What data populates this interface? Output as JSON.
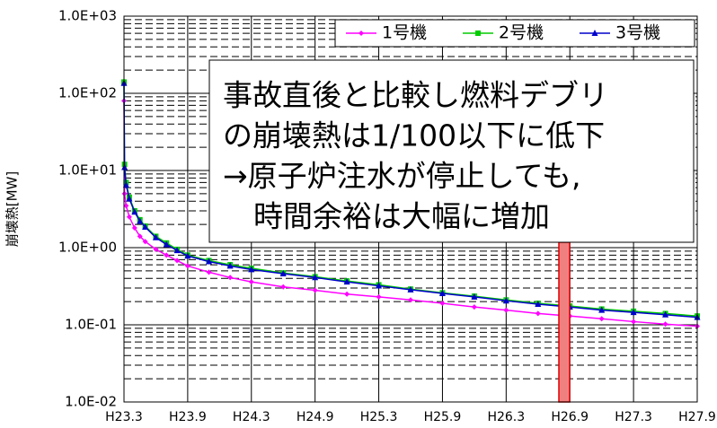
{
  "chart_data": {
    "type": "line",
    "y_label": "崩壊熱[MW]",
    "log_y": true,
    "grid": true,
    "legend_position": "top-right",
    "x": [
      0,
      0.05,
      0.2,
      0.5,
      1,
      1.5,
      2,
      3,
      4,
      5,
      6,
      8,
      10,
      12,
      15,
      18,
      21,
      24,
      27,
      30,
      33,
      36,
      39,
      42,
      45,
      48,
      51,
      54
    ],
    "series": [
      {
        "name": "1号機",
        "color": "#ff00ff",
        "marker": "diamond",
        "values": [
          80,
          5,
          3.5,
          2.5,
          1.8,
          1.4,
          1.2,
          0.95,
          0.8,
          0.68,
          0.58,
          0.48,
          0.41,
          0.36,
          0.31,
          0.28,
          0.25,
          0.23,
          0.21,
          0.19,
          0.17,
          0.155,
          0.14,
          0.13,
          0.12,
          0.11,
          0.102,
          0.096
        ]
      },
      {
        "name": "2号機",
        "color": "#00cc00",
        "marker": "square",
        "values": [
          140,
          12,
          7,
          4.5,
          3.0,
          2.3,
          1.9,
          1.4,
          1.15,
          0.95,
          0.8,
          0.68,
          0.6,
          0.54,
          0.47,
          0.42,
          0.37,
          0.33,
          0.29,
          0.26,
          0.235,
          0.21,
          0.19,
          0.175,
          0.16,
          0.15,
          0.14,
          0.13
        ]
      },
      {
        "name": "3号機",
        "color": "#0000cc",
        "marker": "triangle",
        "values": [
          135,
          11,
          6.5,
          4.3,
          2.9,
          2.2,
          1.85,
          1.35,
          1.1,
          0.92,
          0.78,
          0.66,
          0.58,
          0.52,
          0.46,
          0.41,
          0.36,
          0.32,
          0.285,
          0.255,
          0.23,
          0.205,
          0.185,
          0.17,
          0.155,
          0.145,
          0.135,
          0.125
        ]
      }
    ],
    "xlim": [
      0,
      54
    ],
    "xticks": [
      {
        "value": 0,
        "label": "H23.3"
      },
      {
        "value": 6,
        "label": "H23.9"
      },
      {
        "value": 12,
        "label": "H24.3"
      },
      {
        "value": 18,
        "label": "H24.9"
      },
      {
        "value": 24,
        "label": "H25.3"
      },
      {
        "value": 30,
        "label": "H25.9"
      },
      {
        "value": 36,
        "label": "H26.3"
      },
      {
        "value": 42,
        "label": "H26.9"
      },
      {
        "value": 48,
        "label": "H27.3"
      },
      {
        "value": 54,
        "label": "H27.9"
      }
    ],
    "ylim": [
      0.01,
      1000
    ],
    "yticks": [
      {
        "value": 0.01,
        "label": "1.0E-02"
      },
      {
        "value": 0.1,
        "label": "1.0E-01"
      },
      {
        "value": 1,
        "label": "1.0E+00"
      },
      {
        "value": 10,
        "label": "1.0E+01"
      },
      {
        "value": 100,
        "label": "1.0E+02"
      },
      {
        "value": 1000,
        "label": "1.0E+03"
      }
    ],
    "yminorticks": [
      0.02,
      0.03,
      0.04,
      0.05,
      0.06,
      0.07,
      0.08,
      0.09,
      0.2,
      0.3,
      0.4,
      0.5,
      0.6,
      0.7,
      0.8,
      0.9,
      2,
      3,
      4,
      5,
      6,
      7,
      8,
      9,
      20,
      30,
      40,
      50,
      60,
      70,
      80,
      90,
      200,
      300,
      400,
      500,
      600,
      700,
      800,
      900
    ],
    "annotation": [
      "事故直後と比較し燃料デブリ",
      "の崩壊熱は1/100以下に低下",
      "→原子炉注水が停止しても,",
      "時間余裕は大幅に増加"
    ]
  }
}
